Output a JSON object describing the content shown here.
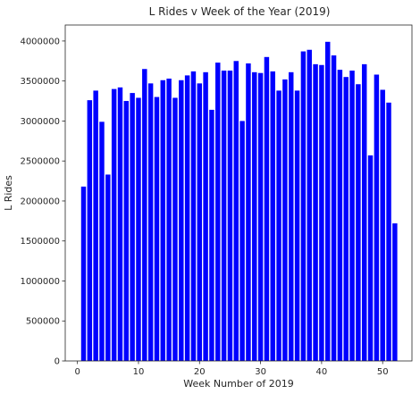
{
  "chart_data": {
    "type": "bar",
    "title": "L Rides v Week of the Year (2019)",
    "xlabel": "Week Number of 2019",
    "ylabel": "L Rides",
    "xlim": [
      -2,
      54.8
    ],
    "ylim": [
      0,
      4200000
    ],
    "xticks": [
      0,
      10,
      20,
      30,
      40,
      50
    ],
    "yticks": [
      0,
      500000,
      1000000,
      1500000,
      2000000,
      2500000,
      3000000,
      3500000,
      4000000
    ],
    "bar_color": "#0000ff",
    "grid": false,
    "x": [
      1,
      2,
      3,
      4,
      5,
      6,
      7,
      8,
      9,
      10,
      11,
      12,
      13,
      14,
      15,
      16,
      17,
      18,
      19,
      20,
      21,
      22,
      23,
      24,
      25,
      26,
      27,
      28,
      29,
      30,
      31,
      32,
      33,
      34,
      35,
      36,
      37,
      38,
      39,
      40,
      41,
      42,
      43,
      44,
      45,
      46,
      47,
      48,
      49,
      50,
      51,
      52
    ],
    "values": [
      2180000,
      3260000,
      3380000,
      2990000,
      2330000,
      3400000,
      3420000,
      3250000,
      3350000,
      3290000,
      3650000,
      3470000,
      3300000,
      3510000,
      3530000,
      3290000,
      3510000,
      3570000,
      3620000,
      3470000,
      3610000,
      3140000,
      3730000,
      3630000,
      3630000,
      3750000,
      3000000,
      3720000,
      3610000,
      3600000,
      3800000,
      3620000,
      3380000,
      3520000,
      3610000,
      3380000,
      3870000,
      3890000,
      3710000,
      3700000,
      3990000,
      3820000,
      3640000,
      3550000,
      3630000,
      3460000,
      3710000,
      2570000,
      3580000,
      3390000,
      3230000,
      1720000
    ]
  }
}
